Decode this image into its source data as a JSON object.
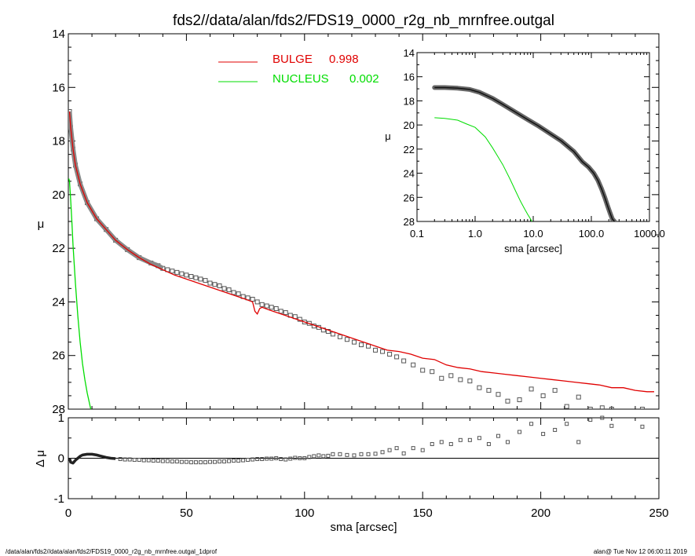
{
  "footer": {
    "path": "/data/alan/fds2//data/alan/fds2/FDS19_0000_r2g_nb_mrnfree.outgal_1dprof",
    "stamp": "alan@  Tue Nov 12 06:00:11 2019"
  },
  "colors": {
    "bulge": "#e00000",
    "nucleus": "#00dd00",
    "data": "#555555",
    "axis": "#000000"
  },
  "chart_data": [
    {
      "id": "main-profile",
      "type": "scatter",
      "title": "fds2//data/alan/fds2/FDS19_0000_r2g_nb_mrnfree.outgal",
      "xlabel": "",
      "ylabel": "μ",
      "xlim": [
        0,
        250
      ],
      "ylim": [
        28,
        14
      ],
      "y_inverted": true,
      "yticks": [
        14,
        16,
        18,
        20,
        22,
        24,
        26,
        28
      ],
      "legend": {
        "placement": "top-center",
        "entries": [
          {
            "label": "BULGE",
            "value": "0.998",
            "color": "#e00000"
          },
          {
            "label": "NUCLEUS",
            "value": "0.002",
            "color": "#00dd00"
          }
        ]
      },
      "series": [
        {
          "name": "BULGE",
          "kind": "line",
          "color": "#e00000",
          "x": [
            0.5,
            1,
            2,
            3,
            5,
            8,
            12,
            16,
            20,
            25,
            30,
            35,
            40,
            45,
            50,
            55,
            60,
            65,
            70,
            75,
            78,
            79,
            80,
            81,
            82,
            85,
            90,
            95,
            100,
            105,
            110,
            115,
            120,
            125,
            130,
            135,
            140,
            145,
            150,
            155,
            160,
            165,
            170,
            175,
            180,
            185,
            190,
            195,
            200,
            205,
            210,
            215,
            220,
            225,
            230,
            235,
            240,
            245,
            248
          ],
          "y": [
            16.9,
            17.5,
            18.3,
            18.9,
            19.6,
            20.3,
            20.9,
            21.3,
            21.7,
            22.05,
            22.35,
            22.6,
            22.8,
            23.0,
            23.15,
            23.3,
            23.45,
            23.6,
            23.75,
            23.9,
            24.0,
            24.35,
            24.45,
            24.25,
            24.2,
            24.3,
            24.45,
            24.6,
            24.75,
            24.9,
            25.05,
            25.2,
            25.35,
            25.5,
            25.65,
            25.8,
            25.85,
            25.95,
            26.1,
            26.15,
            26.35,
            26.45,
            26.5,
            26.6,
            26.65,
            26.7,
            26.75,
            26.8,
            26.85,
            26.9,
            26.95,
            27.0,
            27.05,
            27.1,
            27.2,
            27.2,
            27.3,
            27.35,
            27.35
          ]
        },
        {
          "name": "NUCLEUS",
          "kind": "line",
          "color": "#00dd00",
          "x": [
            0.2,
            0.5,
            1,
            1.5,
            2,
            3,
            4,
            5,
            6,
            7,
            8,
            9,
            10
          ],
          "y": [
            19.4,
            19.5,
            20.2,
            21.0,
            21.9,
            23.3,
            24.5,
            25.5,
            26.3,
            26.9,
            27.4,
            27.8,
            28.2
          ]
        },
        {
          "name": "",
          "kind": "squares",
          "color": "#555555",
          "x": [
            0.5,
            1,
            2,
            3,
            5,
            8,
            12,
            16,
            20,
            25,
            30,
            35,
            38,
            40,
            42,
            44,
            46,
            48,
            50,
            52,
            54,
            56,
            58,
            60,
            62,
            64,
            66,
            68,
            70,
            72,
            74,
            76,
            78,
            80,
            82,
            84,
            86,
            88,
            90,
            92,
            94,
            96,
            98,
            100,
            102,
            104,
            106,
            108,
            110,
            112,
            115,
            118,
            121,
            124,
            127,
            130,
            133,
            136,
            139,
            142,
            146,
            150,
            154,
            158,
            162,
            166,
            170,
            174,
            178,
            182,
            186,
            191,
            196,
            201,
            206,
            211,
            216,
            221,
            226,
            230,
            243
          ],
          "y": [
            16.9,
            17.5,
            18.3,
            18.9,
            19.6,
            20.3,
            20.9,
            21.3,
            21.7,
            22.05,
            22.35,
            22.55,
            22.65,
            22.75,
            22.8,
            22.85,
            22.9,
            22.95,
            23.0,
            23.05,
            23.1,
            23.15,
            23.2,
            23.3,
            23.35,
            23.4,
            23.5,
            23.55,
            23.65,
            23.7,
            23.8,
            23.85,
            23.9,
            24.0,
            24.1,
            24.15,
            24.2,
            24.25,
            24.35,
            24.4,
            24.5,
            24.55,
            24.65,
            24.75,
            24.8,
            24.9,
            24.95,
            25.05,
            25.1,
            25.2,
            25.3,
            25.4,
            25.5,
            25.6,
            25.65,
            25.8,
            25.85,
            25.95,
            26.05,
            26.2,
            26.35,
            26.55,
            26.6,
            26.85,
            26.75,
            26.9,
            26.95,
            27.2,
            27.3,
            27.45,
            27.7,
            27.65,
            27.25,
            27.5,
            27.3,
            27.9,
            27.55,
            28.0,
            27.95,
            28.0,
            28.0
          ]
        }
      ]
    },
    {
      "id": "residuals",
      "type": "scatter",
      "xlabel": "sma [arcsec]",
      "ylabel": "Δ μ",
      "xlim": [
        0,
        250
      ],
      "ylim": [
        -1,
        1
      ],
      "xticks": [
        0,
        50,
        100,
        150,
        200,
        250
      ],
      "yticks": [
        -1,
        0,
        1
      ],
      "zero_line": true,
      "series": [
        {
          "name": "",
          "kind": "squares",
          "color": "#555555",
          "x": [
            0.5,
            1,
            2,
            3,
            4,
            5,
            6,
            8,
            10,
            12,
            14,
            16,
            18,
            20,
            22,
            24,
            26,
            28,
            30,
            32,
            34,
            36,
            38,
            40,
            42,
            44,
            46,
            48,
            50,
            52,
            54,
            56,
            58,
            60,
            62,
            64,
            66,
            68,
            70,
            72,
            74,
            76,
            78,
            80,
            82,
            84,
            86,
            88,
            90,
            92,
            94,
            96,
            98,
            100,
            102,
            104,
            106,
            108,
            110,
            112,
            115,
            118,
            121,
            124,
            127,
            130,
            133,
            136,
            139,
            142,
            146,
            150,
            154,
            158,
            162,
            166,
            170,
            174,
            178,
            182,
            186,
            191,
            196,
            201,
            206,
            211,
            216,
            221,
            226,
            230,
            243
          ],
          "y": [
            0.0,
            -0.1,
            -0.12,
            -0.05,
            0.0,
            0.05,
            0.08,
            0.1,
            0.1,
            0.08,
            0.05,
            0.02,
            0.0,
            -0.01,
            -0.02,
            -0.03,
            -0.03,
            -0.04,
            -0.04,
            -0.05,
            -0.05,
            -0.06,
            -0.06,
            -0.07,
            -0.07,
            -0.08,
            -0.08,
            -0.09,
            -0.09,
            -0.1,
            -0.1,
            -0.1,
            -0.1,
            -0.09,
            -0.09,
            -0.08,
            -0.08,
            -0.07,
            -0.06,
            -0.06,
            -0.05,
            -0.04,
            -0.03,
            -0.02,
            -0.02,
            -0.01,
            -0.01,
            0.0,
            -0.02,
            -0.03,
            -0.01,
            0.01,
            0.0,
            0.0,
            0.03,
            0.05,
            0.07,
            0.05,
            0.06,
            0.1,
            0.1,
            0.08,
            0.07,
            0.1,
            0.1,
            0.11,
            0.15,
            0.2,
            0.25,
            0.12,
            0.25,
            0.2,
            0.35,
            0.4,
            0.35,
            0.45,
            0.45,
            0.5,
            0.35,
            0.55,
            0.4,
            0.65,
            0.85,
            0.6,
            0.7,
            0.85,
            0.4,
            0.95,
            1.0,
            0.8,
            0.78
          ]
        }
      ]
    },
    {
      "id": "inset-log-profile",
      "type": "scatter",
      "xlabel": "sma [arcsec]",
      "ylabel": "μ",
      "xscale": "log",
      "xlim": [
        0.1,
        1000
      ],
      "ylim": [
        28,
        14
      ],
      "y_inverted": true,
      "xticks": [
        "0.1",
        "1.0",
        "10.0",
        "100.0",
        "1000.0"
      ],
      "yticks": [
        14,
        16,
        18,
        20,
        22,
        24,
        26,
        28
      ],
      "series": [
        {
          "name": "",
          "kind": "thick-line",
          "color": "#555555",
          "x": [
            0.2,
            0.3,
            0.5,
            0.8,
            1.2,
            2,
            3,
            5,
            8,
            12,
            20,
            30,
            50,
            70,
            90,
            110,
            130,
            150,
            170,
            190,
            210,
            230,
            250
          ],
          "y": [
            16.9,
            16.9,
            16.95,
            17.05,
            17.3,
            17.8,
            18.3,
            18.95,
            19.55,
            20.05,
            20.75,
            21.3,
            22.2,
            23.05,
            23.5,
            24.0,
            24.6,
            25.3,
            26.0,
            26.7,
            27.3,
            27.8,
            28.0
          ]
        },
        {
          "name": "",
          "kind": "line",
          "color": "#00dd00",
          "x": [
            0.2,
            0.3,
            0.5,
            0.7,
            1,
            1.5,
            2,
            3,
            4,
            5,
            6,
            7,
            8,
            9,
            10
          ],
          "y": [
            19.4,
            19.45,
            19.6,
            19.9,
            20.2,
            21.0,
            21.9,
            23.3,
            24.5,
            25.5,
            26.3,
            26.9,
            27.4,
            27.8,
            28.2
          ]
        }
      ]
    }
  ]
}
